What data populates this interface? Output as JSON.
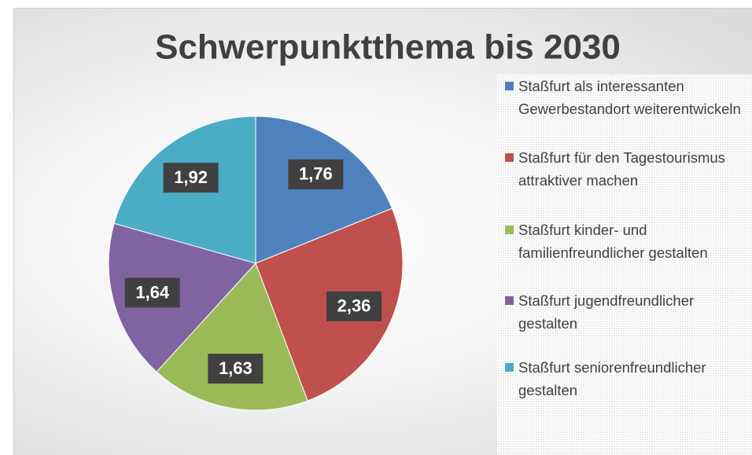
{
  "chart_data": {
    "type": "pie",
    "title": "Schwerpunktthema bis 2030",
    "categories": [
      "Staßfurt als interessanten Gewerbestandort weiterentwickeln",
      "Staßfurt für den Tagestourismus attraktiver machen",
      "Staßfurt kinder- und familienfreundlicher gestalten",
      "Staßfurt jugendfreundlicher gestalten",
      "Staßfurt seniorenfreundlicher gestalten"
    ],
    "values": [
      1.76,
      2.36,
      1.63,
      1.64,
      1.92
    ],
    "value_labels": [
      "1,76",
      "2,36",
      "1,63",
      "1,64",
      "1,92"
    ],
    "colors": [
      "#4f81bd",
      "#c0504d",
      "#9bbb59",
      "#8064a2",
      "#4bacc6"
    ],
    "legend": "right"
  }
}
